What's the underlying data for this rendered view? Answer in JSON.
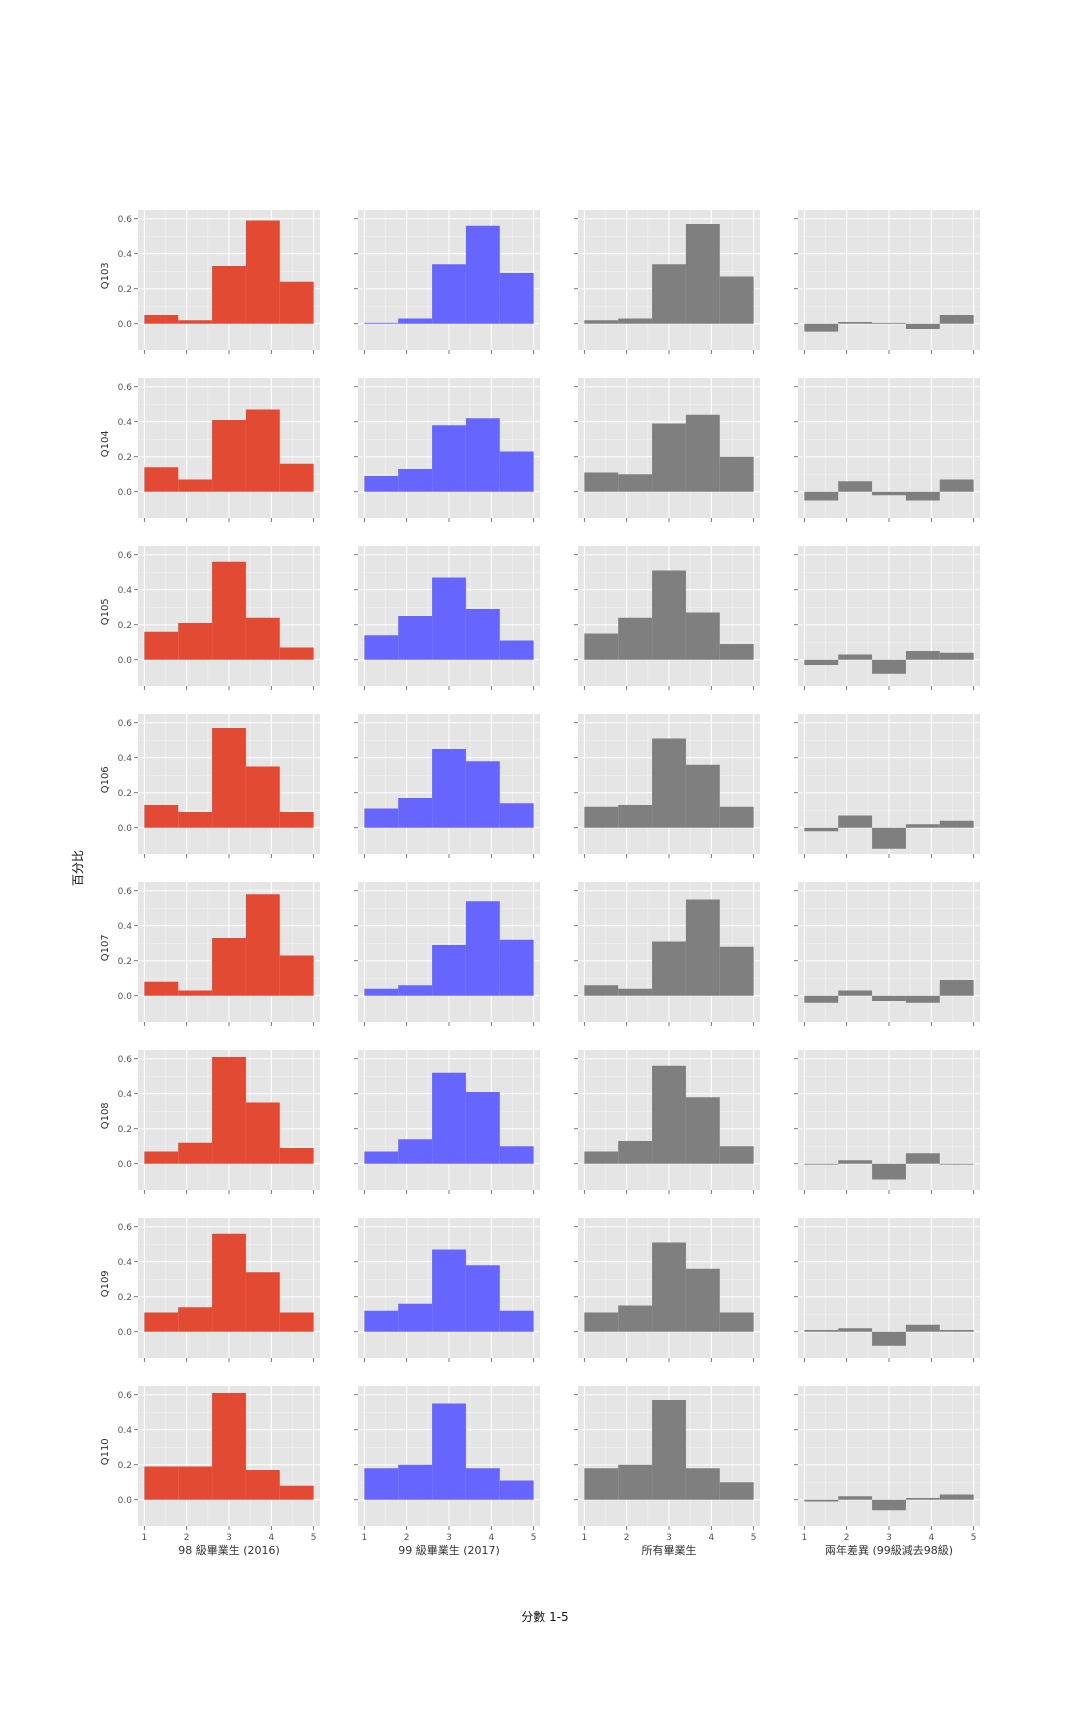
{
  "chart_data": {
    "type": "bar",
    "layout": "facet-grid-histogram",
    "xlabel": "分數 1-5",
    "ylabel": "百分比",
    "x_ticks": [
      1,
      2,
      3,
      4,
      5
    ],
    "y_ticks": [
      0.0,
      0.2,
      0.4,
      0.6
    ],
    "y_tick_labels": [
      "0.0",
      "0.2",
      "0.4",
      "0.6"
    ],
    "ylim": [
      -0.15,
      0.65
    ],
    "xlim": [
      0.85,
      5.15
    ],
    "bins": [
      [
        1,
        1.8
      ],
      [
        1.8,
        2.6
      ],
      [
        2.6,
        3.4
      ],
      [
        3.4,
        4.2
      ],
      [
        4.2,
        5
      ]
    ],
    "grid": true,
    "columns": [
      {
        "label": "98 級畢業生 (2016)",
        "color": "#E24A33"
      },
      {
        "label": "99 級畢業生 (2017)",
        "color": "#6666FF"
      },
      {
        "label": "所有畢業生",
        "color": "#7F7F7F"
      },
      {
        "label": "兩年差異 (99級減去98級)",
        "color": "#7F7F7F"
      }
    ],
    "rows": [
      {
        "label": "Q103",
        "values": [
          [
            0.05,
            0.02,
            0.33,
            0.59,
            0.24
          ],
          [
            0.005,
            0.03,
            0.34,
            0.56,
            0.29
          ],
          [
            0.02,
            0.03,
            0.34,
            0.57,
            0.27
          ],
          [
            -0.045,
            0.01,
            0.005,
            -0.03,
            0.05
          ]
        ]
      },
      {
        "label": "Q104",
        "values": [
          [
            0.14,
            0.07,
            0.41,
            0.47,
            0.16
          ],
          [
            0.09,
            0.13,
            0.38,
            0.42,
            0.23
          ],
          [
            0.11,
            0.1,
            0.39,
            0.44,
            0.2
          ],
          [
            -0.05,
            0.06,
            -0.02,
            -0.05,
            0.07
          ]
        ]
      },
      {
        "label": "Q105",
        "values": [
          [
            0.16,
            0.21,
            0.56,
            0.24,
            0.07
          ],
          [
            0.14,
            0.25,
            0.47,
            0.29,
            0.11
          ],
          [
            0.15,
            0.24,
            0.51,
            0.27,
            0.09
          ],
          [
            -0.03,
            0.03,
            -0.08,
            0.05,
            0.04
          ]
        ]
      },
      {
        "label": "Q106",
        "values": [
          [
            0.13,
            0.09,
            0.57,
            0.35,
            0.09
          ],
          [
            0.11,
            0.17,
            0.45,
            0.38,
            0.14
          ],
          [
            0.12,
            0.13,
            0.51,
            0.36,
            0.12
          ],
          [
            -0.02,
            0.07,
            -0.12,
            0.02,
            0.04
          ]
        ]
      },
      {
        "label": "Q107",
        "values": [
          [
            0.08,
            0.03,
            0.33,
            0.58,
            0.23
          ],
          [
            0.04,
            0.06,
            0.29,
            0.54,
            0.32
          ],
          [
            0.06,
            0.04,
            0.31,
            0.55,
            0.28
          ],
          [
            -0.04,
            0.03,
            -0.03,
            -0.04,
            0.09
          ]
        ]
      },
      {
        "label": "Q108",
        "values": [
          [
            0.07,
            0.12,
            0.61,
            0.35,
            0.09
          ],
          [
            0.07,
            0.14,
            0.52,
            0.41,
            0.1
          ],
          [
            0.07,
            0.13,
            0.56,
            0.38,
            0.1
          ],
          [
            0.0,
            0.02,
            -0.09,
            0.06,
            0.0
          ]
        ]
      },
      {
        "label": "Q109",
        "values": [
          [
            0.11,
            0.14,
            0.56,
            0.34,
            0.11
          ],
          [
            0.12,
            0.16,
            0.47,
            0.38,
            0.12
          ],
          [
            0.11,
            0.15,
            0.51,
            0.36,
            0.11
          ],
          [
            0.01,
            0.02,
            -0.08,
            0.04,
            0.01
          ]
        ]
      },
      {
        "label": "Q110",
        "values": [
          [
            0.19,
            0.19,
            0.61,
            0.17,
            0.08
          ],
          [
            0.18,
            0.2,
            0.55,
            0.18,
            0.11
          ],
          [
            0.18,
            0.2,
            0.57,
            0.18,
            0.1
          ],
          [
            -0.01,
            0.02,
            -0.06,
            0.01,
            0.03
          ]
        ]
      }
    ]
  }
}
